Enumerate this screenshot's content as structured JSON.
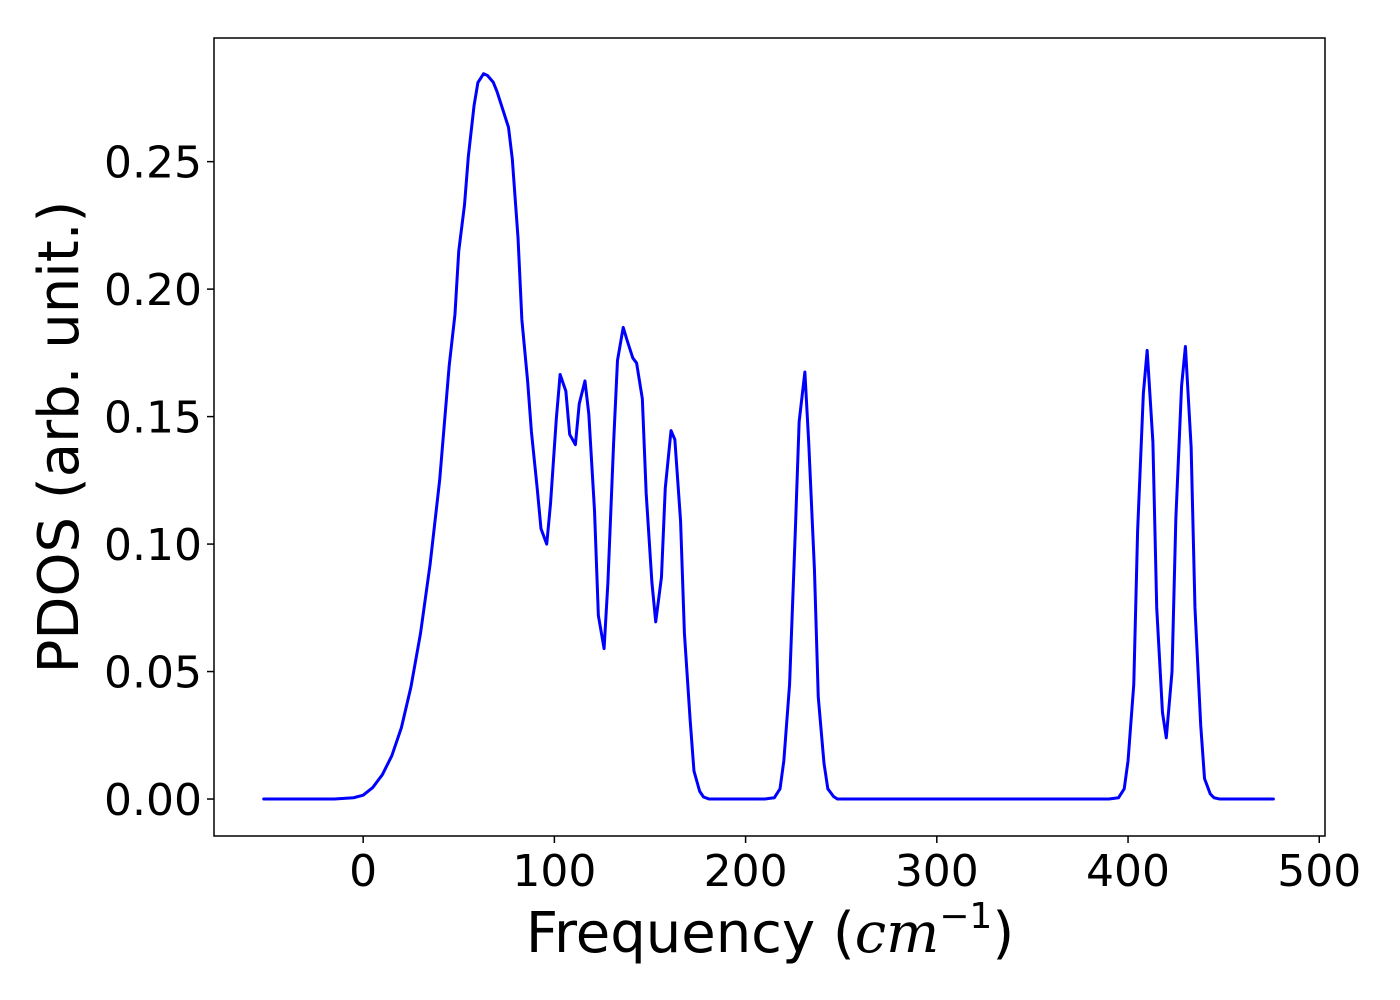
{
  "chart_data": {
    "type": "line",
    "title": "",
    "xlabel_prefix": "Frequency (",
    "xlabel_math": "cm",
    "xlabel_exponent": "−1",
    "xlabel_suffix": ")",
    "ylabel": "PDOS (arb. unit.)",
    "xlim": [
      -78,
      503
    ],
    "ylim": [
      -0.0145,
      0.2985
    ],
    "grid": false,
    "x_ticks": [
      0,
      100,
      200,
      300,
      400,
      500
    ],
    "x_tick_labels": [
      "0",
      "100",
      "200",
      "300",
      "400",
      "500"
    ],
    "y_ticks": [
      0.0,
      0.05,
      0.1,
      0.15,
      0.2,
      0.25
    ],
    "y_tick_labels": [
      "0.00",
      "0.05",
      "0.10",
      "0.15",
      "0.20",
      "0.25"
    ],
    "series": [
      {
        "color": "#0000ff",
        "x": [
          -52,
          -15,
          -5,
          0,
          5,
          10,
          15,
          20,
          25,
          30,
          35,
          40,
          45,
          48,
          50,
          53,
          55,
          58,
          60,
          63,
          65,
          68,
          70,
          73,
          76,
          78,
          81,
          83,
          86,
          88,
          91,
          93,
          96,
          98,
          101,
          103,
          106,
          108,
          111,
          113,
          116,
          118,
          121,
          123,
          126,
          128,
          131,
          133,
          136,
          138,
          141,
          143,
          146,
          148,
          151,
          153,
          156,
          158,
          161,
          163,
          166,
          168,
          171,
          173,
          176,
          178,
          181,
          183,
          186,
          188,
          191,
          200,
          210,
          215,
          218,
          220,
          223,
          226,
          228,
          231,
          233,
          236,
          238,
          241,
          243,
          246,
          248,
          251,
          255,
          300,
          390,
          395,
          398,
          400,
          403,
          405,
          408,
          410,
          413,
          415,
          418,
          420,
          423,
          425,
          428,
          430,
          433,
          435,
          438,
          440,
          443,
          445,
          448,
          460,
          476
        ],
        "y": [
          0.0,
          0.0,
          0.0005,
          0.0015,
          0.0045,
          0.0095,
          0.017,
          0.028,
          0.044,
          0.065,
          0.092,
          0.125,
          0.17,
          0.19,
          0.215,
          0.233,
          0.252,
          0.272,
          0.281,
          0.2845,
          0.2838,
          0.2812,
          0.2775,
          0.2705,
          0.2635,
          0.251,
          0.22,
          0.188,
          0.164,
          0.144,
          0.122,
          0.106,
          0.1,
          0.116,
          0.149,
          0.1665,
          0.16,
          0.143,
          0.139,
          0.155,
          0.164,
          0.151,
          0.113,
          0.072,
          0.059,
          0.085,
          0.14,
          0.172,
          0.185,
          0.18,
          0.173,
          0.171,
          0.157,
          0.12,
          0.085,
          0.0695,
          0.087,
          0.122,
          0.1445,
          0.141,
          0.109,
          0.065,
          0.031,
          0.011,
          0.003,
          0.0008,
          0.0,
          0.0,
          0.0,
          0.0,
          0.0,
          0.0,
          0.0,
          0.0005,
          0.004,
          0.015,
          0.045,
          0.105,
          0.148,
          0.1675,
          0.14,
          0.09,
          0.04,
          0.014,
          0.004,
          0.001,
          0.0,
          0.0,
          0.0,
          0.0,
          0.0,
          0.0005,
          0.004,
          0.015,
          0.045,
          0.105,
          0.159,
          0.176,
          0.14,
          0.075,
          0.034,
          0.024,
          0.05,
          0.11,
          0.162,
          0.1775,
          0.138,
          0.075,
          0.029,
          0.008,
          0.002,
          0.0005,
          0.0,
          0.0,
          0.0
        ]
      }
    ]
  }
}
